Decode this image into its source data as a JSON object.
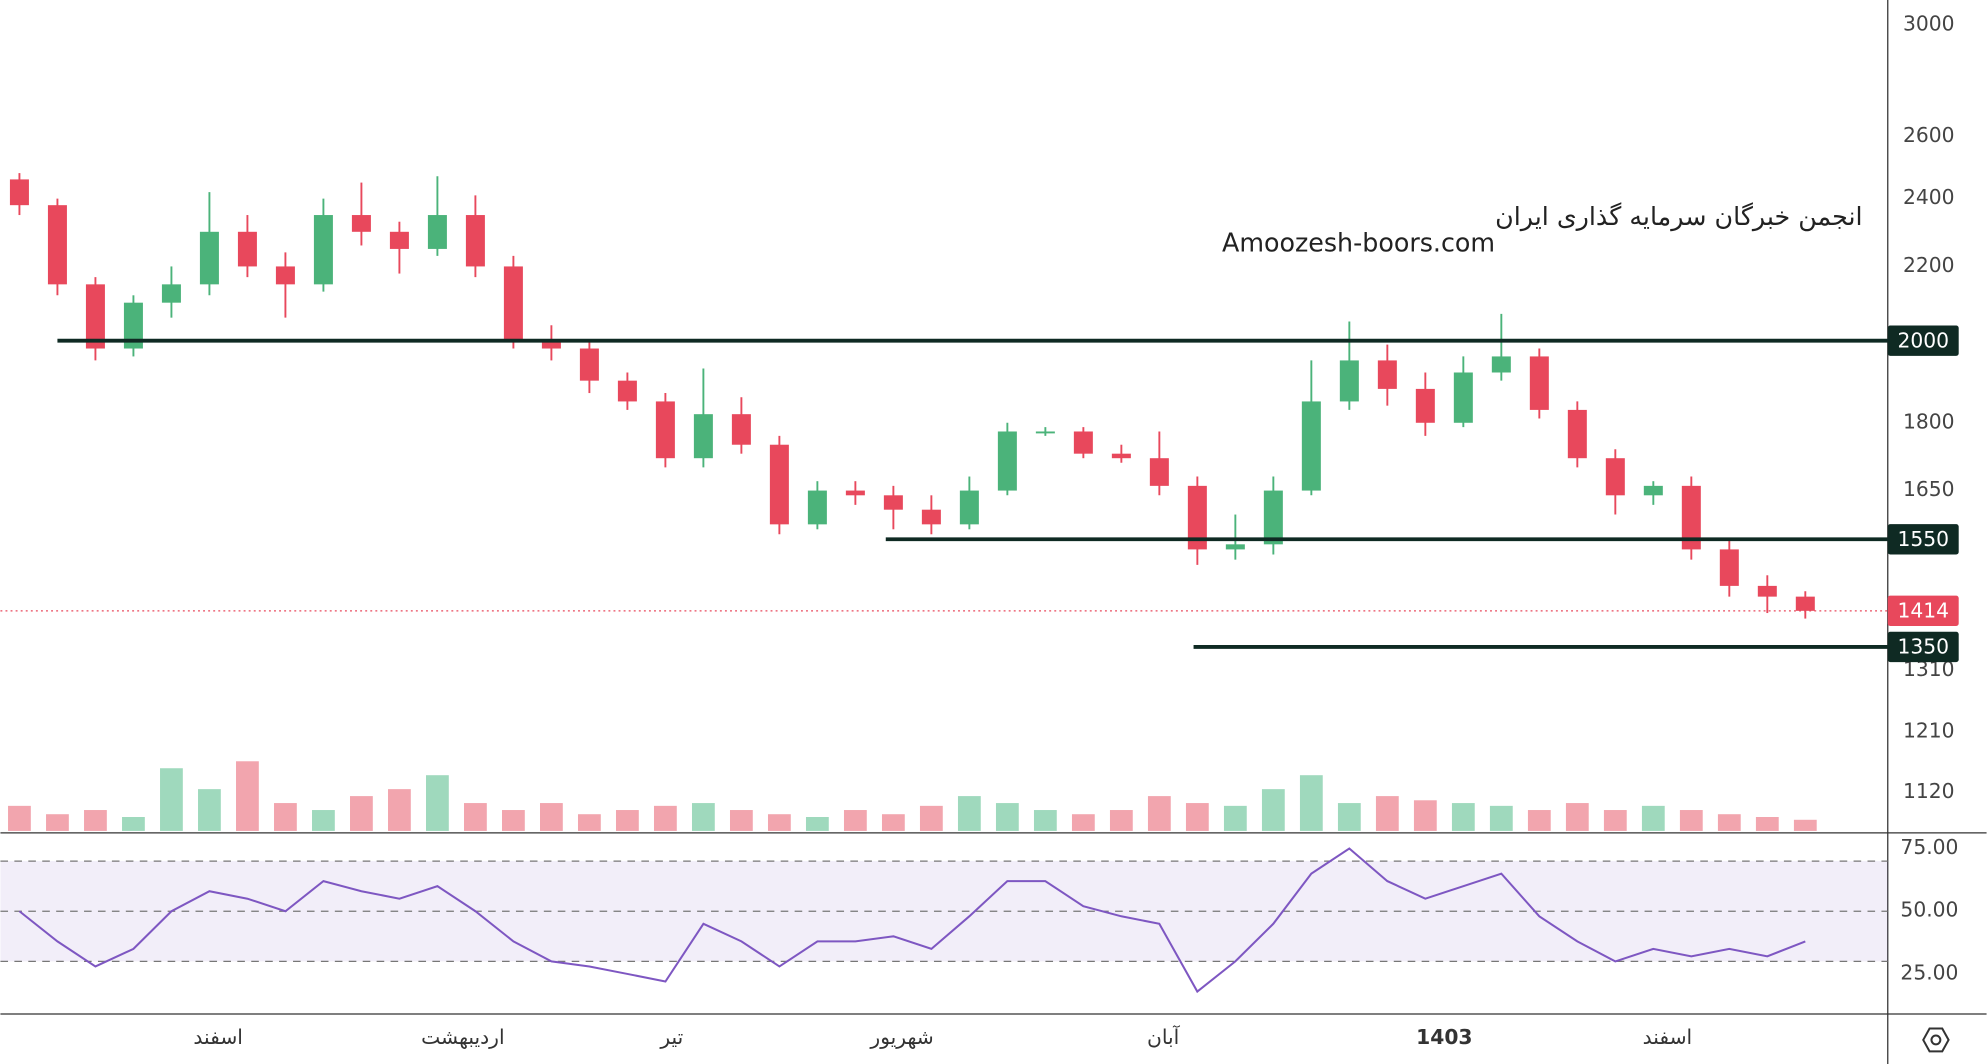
{
  "chart_data": [
    {
      "type": "candlestick",
      "watermark": [
        "انجمن خبرگان سرمایه گذاری ایران",
        "Amoozesh-boors.com"
      ],
      "open": [
        2460,
        2380,
        2150,
        1980,
        2100,
        2150,
        2300,
        2200,
        2150,
        2350,
        2300,
        2250,
        2350,
        2200,
        2000,
        1980,
        1900,
        1850,
        1720,
        1820,
        1750,
        1580,
        1650,
        1640,
        1610,
        1580,
        1650,
        1780,
        1780,
        1730,
        1720,
        1660,
        1530,
        1540,
        1650,
        1850,
        1950,
        1880,
        1800,
        1920,
        1960,
        1830,
        1720,
        1640,
        1660,
        1530,
        1460,
        1440
      ],
      "high": [
        2480,
        2400,
        2170,
        2120,
        2200,
        2420,
        2350,
        2240,
        2400,
        2450,
        2330,
        2470,
        2410,
        2230,
        2040,
        2000,
        1920,
        1870,
        1930,
        1860,
        1770,
        1670,
        1670,
        1660,
        1640,
        1680,
        1800,
        1790,
        1790,
        1750,
        1780,
        1680,
        1600,
        1680,
        1950,
        2050,
        1990,
        1920,
        1960,
        2070,
        1980,
        1850,
        1740,
        1670,
        1680,
        1550,
        1480,
        1450
      ],
      "low": [
        2350,
        2120,
        1950,
        1960,
        2060,
        2120,
        2170,
        2060,
        2130,
        2260,
        2180,
        2230,
        2170,
        1980,
        1950,
        1870,
        1830,
        1700,
        1700,
        1730,
        1560,
        1570,
        1620,
        1570,
        1560,
        1570,
        1640,
        1770,
        1720,
        1710,
        1640,
        1500,
        1510,
        1520,
        1640,
        1830,
        1840,
        1770,
        1790,
        1900,
        1810,
        1700,
        1600,
        1620,
        1510,
        1440,
        1410,
        1400
      ],
      "close": [
        2380,
        2150,
        1980,
        2100,
        2150,
        2300,
        2200,
        2150,
        2350,
        2300,
        2250,
        2350,
        2200,
        2000,
        1980,
        1900,
        1850,
        1720,
        1820,
        1750,
        1580,
        1650,
        1640,
        1610,
        1580,
        1650,
        1780,
        1780,
        1730,
        1720,
        1660,
        1530,
        1540,
        1650,
        1850,
        1950,
        1880,
        1800,
        1920,
        1960,
        1830,
        1720,
        1640,
        1660,
        1530,
        1460,
        1440,
        1414
      ],
      "volume": [
        18,
        12,
        15,
        10,
        45,
        30,
        50,
        20,
        15,
        25,
        30,
        40,
        20,
        15,
        20,
        12,
        15,
        18,
        20,
        15,
        12,
        10,
        15,
        12,
        18,
        25,
        20,
        15,
        12,
        15,
        25,
        20,
        18,
        30,
        40,
        20,
        25,
        22,
        20,
        18,
        15,
        20,
        15,
        18,
        15,
        12,
        10,
        8
      ],
      "up_color": "#4bb37a",
      "down_color": "#e8485c",
      "volume_up_color": "#9fd9bd",
      "volume_down_color": "#f2a5ae",
      "log_scale": true,
      "xlim": [
        -0.5,
        49.17
      ],
      "ylim": [
        1066,
        3097
      ],
      "yticks": [
        3000,
        2600,
        2400,
        2200,
        2000,
        1800,
        1650,
        1310,
        1210,
        1120
      ],
      "volume_lim": [
        0,
        100
      ],
      "xticks": [
        {
          "value": 5.23,
          "label": "اسفند"
        },
        {
          "value": 11.67,
          "label": "اردیبهشت"
        },
        {
          "value": 17.17,
          "label": "تیر"
        },
        {
          "value": 23.23,
          "label": "شهریور"
        },
        {
          "value": 30.1,
          "label": "آبان"
        },
        {
          "value": 37.5,
          "label": "1403",
          "bold": true
        },
        {
          "value": 43.37,
          "label": "اسفند"
        }
      ],
      "levels": [
        {
          "value": 2000,
          "x_start": 1.0
        },
        {
          "value": 1550,
          "x_start": 22.8
        },
        {
          "value": 1350,
          "x_start": 30.9
        }
      ],
      "level_color": "#0f2a23",
      "last_price": 1414
    },
    {
      "type": "line",
      "values": [
        50,
        38,
        28,
        35,
        50,
        58,
        55,
        50,
        62,
        58,
        55,
        60,
        50,
        38,
        30,
        28,
        25,
        22,
        45,
        38,
        28,
        38,
        38,
        40,
        35,
        48,
        62,
        62,
        52,
        48,
        45,
        18,
        30,
        45,
        65,
        75,
        62,
        55,
        60,
        65,
        48,
        38,
        30,
        35,
        32,
        35,
        32,
        38
      ],
      "color": "#7e57c2",
      "ylim": [
        9.3,
        80
      ],
      "yticks": [
        {
          "value": 75,
          "label": "75.00"
        },
        {
          "value": 50,
          "label": "50.00"
        },
        {
          "value": 25,
          "label": "25.00"
        }
      ],
      "band": [
        30,
        70
      ],
      "levels": [
        70,
        50,
        30
      ]
    }
  ]
}
